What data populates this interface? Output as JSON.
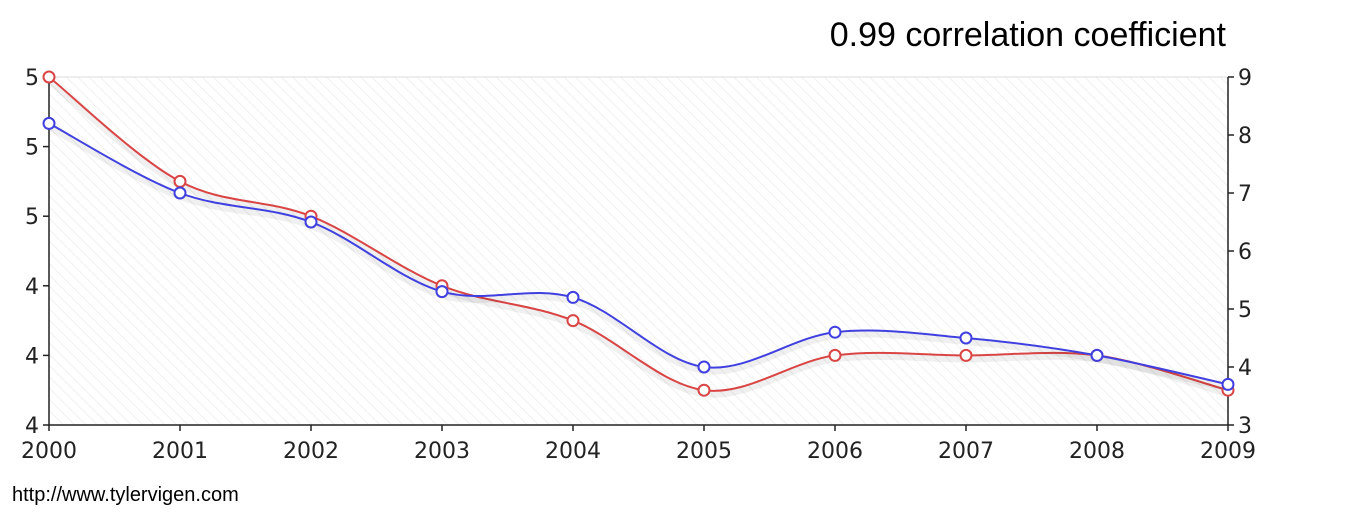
{
  "header": {
    "correlation": "0.99 correlation coefficient"
  },
  "footer": {
    "source": "http://www.tylervigen.com"
  },
  "chart_data": {
    "type": "line",
    "title": "",
    "x": [
      "2000",
      "2001",
      "2002",
      "2003",
      "2004",
      "2005",
      "2006",
      "2007",
      "2008",
      "2009"
    ],
    "y_left": {
      "min": 0,
      "max": 5,
      "ticks": [
        "4",
        "4",
        "4",
        "5",
        "5",
        "5"
      ]
    },
    "y_right": {
      "min": 3,
      "max": 9,
      "ticks": [
        "3",
        "4",
        "5",
        "6",
        "7",
        "8",
        "9"
      ]
    },
    "series": [
      {
        "axis": "left",
        "color": "#d94545",
        "values": [
          5.0,
          3.5,
          3.0,
          2.0,
          1.5,
          0.5,
          1.0,
          1.0,
          1.0,
          0.5
        ]
      },
      {
        "axis": "right",
        "color": "#4040e0",
        "values": [
          8.2,
          7.0,
          6.5,
          5.3,
          5.2,
          4.0,
          4.6,
          4.5,
          4.2,
          3.7
        ]
      }
    ],
    "grid": false,
    "background": "diagonal-hatch"
  }
}
